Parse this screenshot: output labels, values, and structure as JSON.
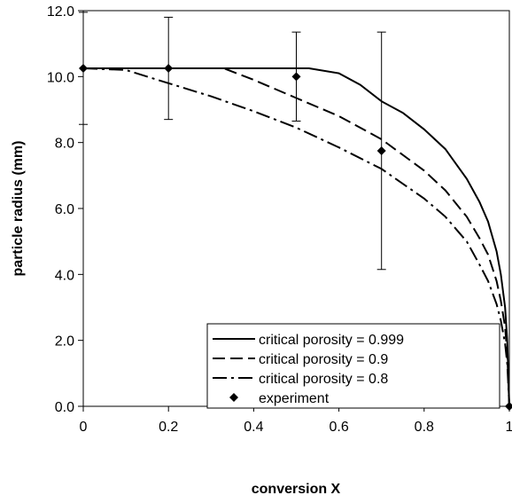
{
  "chart_data": {
    "type": "line",
    "title": "",
    "xlabel": "conversion X",
    "ylabel": "particle radius (mm)",
    "xlim": [
      0,
      1
    ],
    "ylim": [
      0,
      12
    ],
    "x_ticks": [
      0,
      0.2,
      0.4,
      0.6,
      0.8,
      1
    ],
    "x_tick_labels": [
      "0",
      "0.2",
      "0.4",
      "0.6",
      "0.8",
      "1"
    ],
    "y_ticks": [
      0,
      2,
      4,
      6,
      8,
      10,
      12
    ],
    "y_tick_labels": [
      "0.0",
      "2.0",
      "4.0",
      "6.0",
      "8.0",
      "10.0",
      "12.0"
    ],
    "grid": false,
    "legend_position": "bottom-right",
    "series": [
      {
        "name": "critical porosity = 0.999",
        "style": "solid",
        "color": "#000000",
        "x": [
          0,
          0.53,
          0.6,
          0.65,
          0.7,
          0.75,
          0.8,
          0.85,
          0.9,
          0.93,
          0.95,
          0.97,
          0.98,
          0.99,
          0.995,
          1.0
        ],
        "y": [
          10.25,
          10.25,
          10.1,
          9.75,
          9.25,
          8.9,
          8.4,
          7.8,
          6.9,
          6.2,
          5.6,
          4.7,
          4.0,
          3.0,
          2.0,
          0
        ]
      },
      {
        "name": "critical porosity = 0.9",
        "style": "dashed",
        "color": "#000000",
        "x": [
          0,
          0.33,
          0.4,
          0.5,
          0.6,
          0.7,
          0.8,
          0.85,
          0.9,
          0.93,
          0.95,
          0.97,
          0.98,
          0.99,
          0.995,
          1.0
        ],
        "y": [
          10.25,
          10.25,
          9.9,
          9.35,
          8.8,
          8.1,
          7.15,
          6.55,
          5.75,
          5.1,
          4.6,
          3.8,
          3.2,
          2.4,
          1.6,
          0
        ]
      },
      {
        "name": "critical porosity = 0.8",
        "style": "dash-dot",
        "color": "#000000",
        "x": [
          0,
          0.1,
          0.2,
          0.3,
          0.4,
          0.5,
          0.6,
          0.7,
          0.8,
          0.85,
          0.9,
          0.93,
          0.95,
          0.97,
          0.98,
          0.99,
          0.995,
          1.0
        ],
        "y": [
          10.25,
          10.2,
          9.8,
          9.4,
          8.95,
          8.45,
          7.85,
          7.2,
          6.3,
          5.75,
          5.0,
          4.3,
          3.8,
          3.1,
          2.6,
          1.9,
          1.3,
          0
        ]
      },
      {
        "name": "experiment",
        "style": "marker",
        "marker": "diamond",
        "color": "#000000",
        "x": [
          0,
          0.2,
          0.5,
          0.7,
          1.0
        ],
        "y": [
          10.25,
          10.25,
          10.0,
          7.75,
          0
        ],
        "error": [
          1.7,
          1.55,
          1.35,
          3.6,
          0
        ]
      }
    ]
  }
}
